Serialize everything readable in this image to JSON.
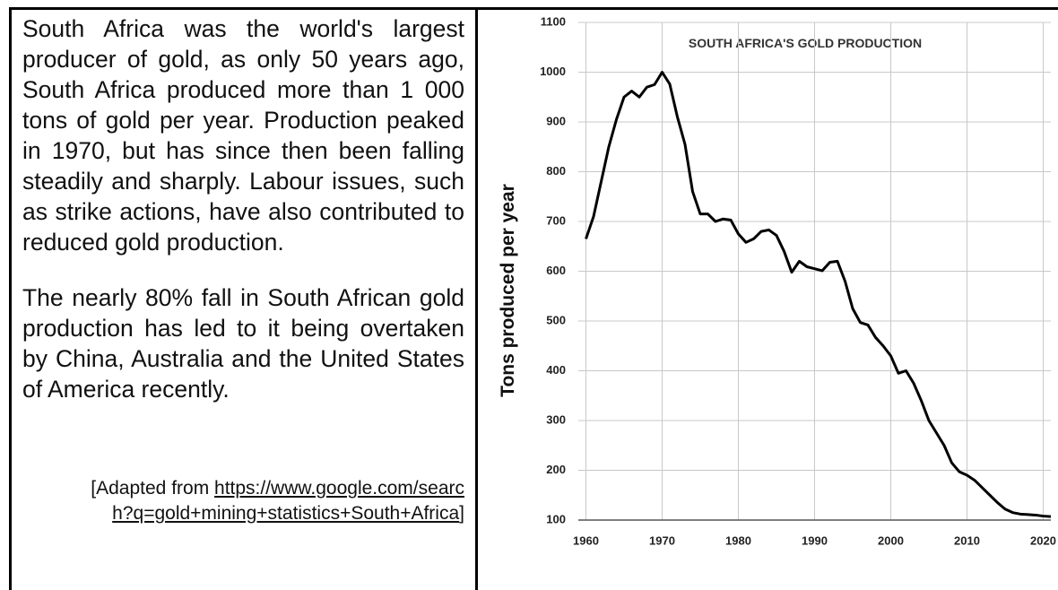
{
  "text": {
    "paragraphs": [
      "South Africa was the world's largest producer of gold, as only 50 years ago, South Africa produced more than 1 000 tons of gold per year. Production peaked in 1970, but has since then been falling steadily and sharply. Labour issues, such as strike actions, have also contributed to reduced gold production.",
      "The nearly 80% fall in South African gold production has led to it being overtaken by China, Australia and the United States of America recently."
    ],
    "source": {
      "prefix": "[Adapted from",
      "url": "https://www.google.com/search?q=gold+mining+statistics+South+Africa",
      "suffix": "]"
    }
  },
  "chart_data": {
    "type": "line",
    "title": "SOUTH AFRICA'S GOLD PRODUCTION",
    "y_label": "Tons produced per year",
    "color": "#000000",
    "grid": true,
    "x": [
      1960,
      1961,
      1962,
      1963,
      1964,
      1965,
      1966,
      1967,
      1968,
      1969,
      1970,
      1971,
      1972,
      1973,
      1974,
      1975,
      1976,
      1977,
      1978,
      1979,
      1980,
      1981,
      1982,
      1983,
      1984,
      1985,
      1986,
      1987,
      1988,
      1989,
      1990,
      1991,
      1992,
      1993,
      1994,
      1995,
      1996,
      1997,
      1998,
      1999,
      2000,
      2001,
      2002,
      2003,
      2004,
      2005,
      2006,
      2007,
      2008,
      2009,
      2010,
      2011,
      2012,
      2013,
      2014,
      2015,
      2016,
      2017,
      2018,
      2019,
      2020,
      2021
    ],
    "values": [
      665,
      710,
      780,
      850,
      905,
      950,
      962,
      950,
      970,
      975,
      1000,
      976,
      910,
      855,
      760,
      715,
      715,
      700,
      705,
      703,
      675,
      658,
      665,
      680,
      683,
      672,
      640,
      598,
      620,
      609,
      605,
      601,
      618,
      620,
      580,
      525,
      497,
      492,
      467,
      450,
      430,
      395,
      400,
      375,
      340,
      300,
      275,
      250,
      215,
      197,
      190,
      180,
      165,
      150,
      135,
      122,
      115,
      112,
      111,
      110,
      108,
      107
    ],
    "xlim": [
      1959,
      2021
    ],
    "ylim": [
      100,
      1100
    ],
    "xticks": [
      1960,
      1970,
      1980,
      1990,
      2000,
      2010,
      2020
    ],
    "yticks": [
      100,
      200,
      300,
      400,
      500,
      600,
      700,
      800,
      900,
      1000,
      1100
    ]
  }
}
